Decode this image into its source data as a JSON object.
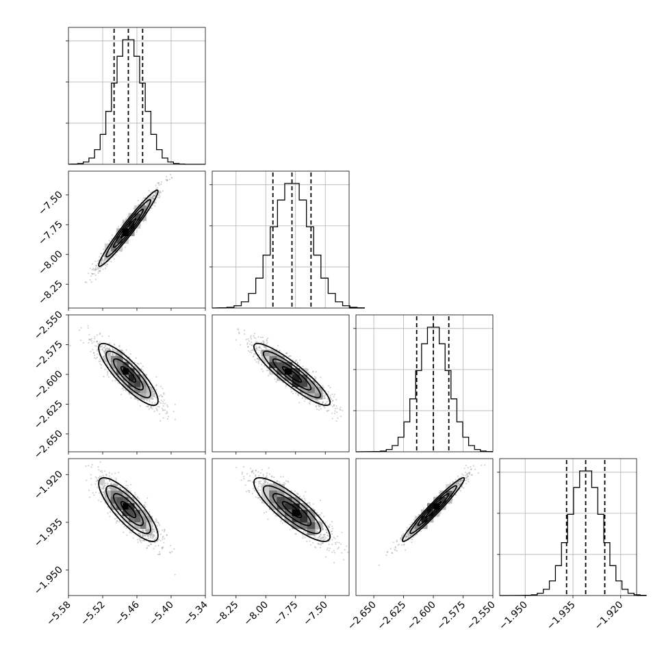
{
  "chart_data": {
    "type": "corner",
    "parameters": [
      {
        "id": "p0",
        "mean": -5.475,
        "sd": 0.026,
        "range": [
          -5.58,
          -5.34
        ],
        "ticks": [
          -5.58,
          -5.52,
          -5.46,
          -5.4,
          -5.34
        ],
        "tick_labels": [
          "−5.58",
          "−5.52",
          "−5.46",
          "−5.40",
          "−5.34"
        ],
        "quantiles": [
          -5.5,
          -5.475,
          -5.45
        ]
      },
      {
        "id": "p1",
        "mean": -7.78,
        "sd": 0.16,
        "range": [
          -8.45,
          -7.3
        ],
        "ticks": [
          -8.25,
          -8.0,
          -7.75,
          -7.5
        ],
        "tick_labels": [
          "−8.25",
          "−8.00",
          "−7.75",
          "−7.50"
        ],
        "quantiles": [
          -7.94,
          -7.78,
          -7.62
        ]
      },
      {
        "id": "p2",
        "mean": -2.6,
        "sd": 0.013,
        "range": [
          -2.665,
          -2.55
        ],
        "ticks": [
          -2.65,
          -2.625,
          -2.6,
          -2.575,
          -2.55
        ],
        "tick_labels": [
          "−2.650",
          "−2.625",
          "−2.600",
          "−2.575",
          "−2.550"
        ],
        "quantiles": [
          -2.614,
          -2.6,
          -2.587
        ]
      },
      {
        "id": "p3",
        "mean": -1.931,
        "sd": 0.005,
        "range": [
          -1.958,
          -1.915
        ],
        "ticks": [
          -1.95,
          -1.935,
          -1.92
        ],
        "tick_labels": [
          "−1.950",
          "−1.935",
          "−1.920"
        ],
        "quantiles": [
          -1.937,
          -1.931,
          -1.925
        ]
      }
    ],
    "correlations": {
      "0-1": 0.97,
      "0-2": -0.85,
      "1-2": -0.9,
      "0-3": -0.82,
      "1-3": -0.85,
      "2-3": 0.97
    },
    "histogram_bins": 20,
    "samples_per_panel": 1400,
    "grid": true,
    "legend": "none"
  }
}
